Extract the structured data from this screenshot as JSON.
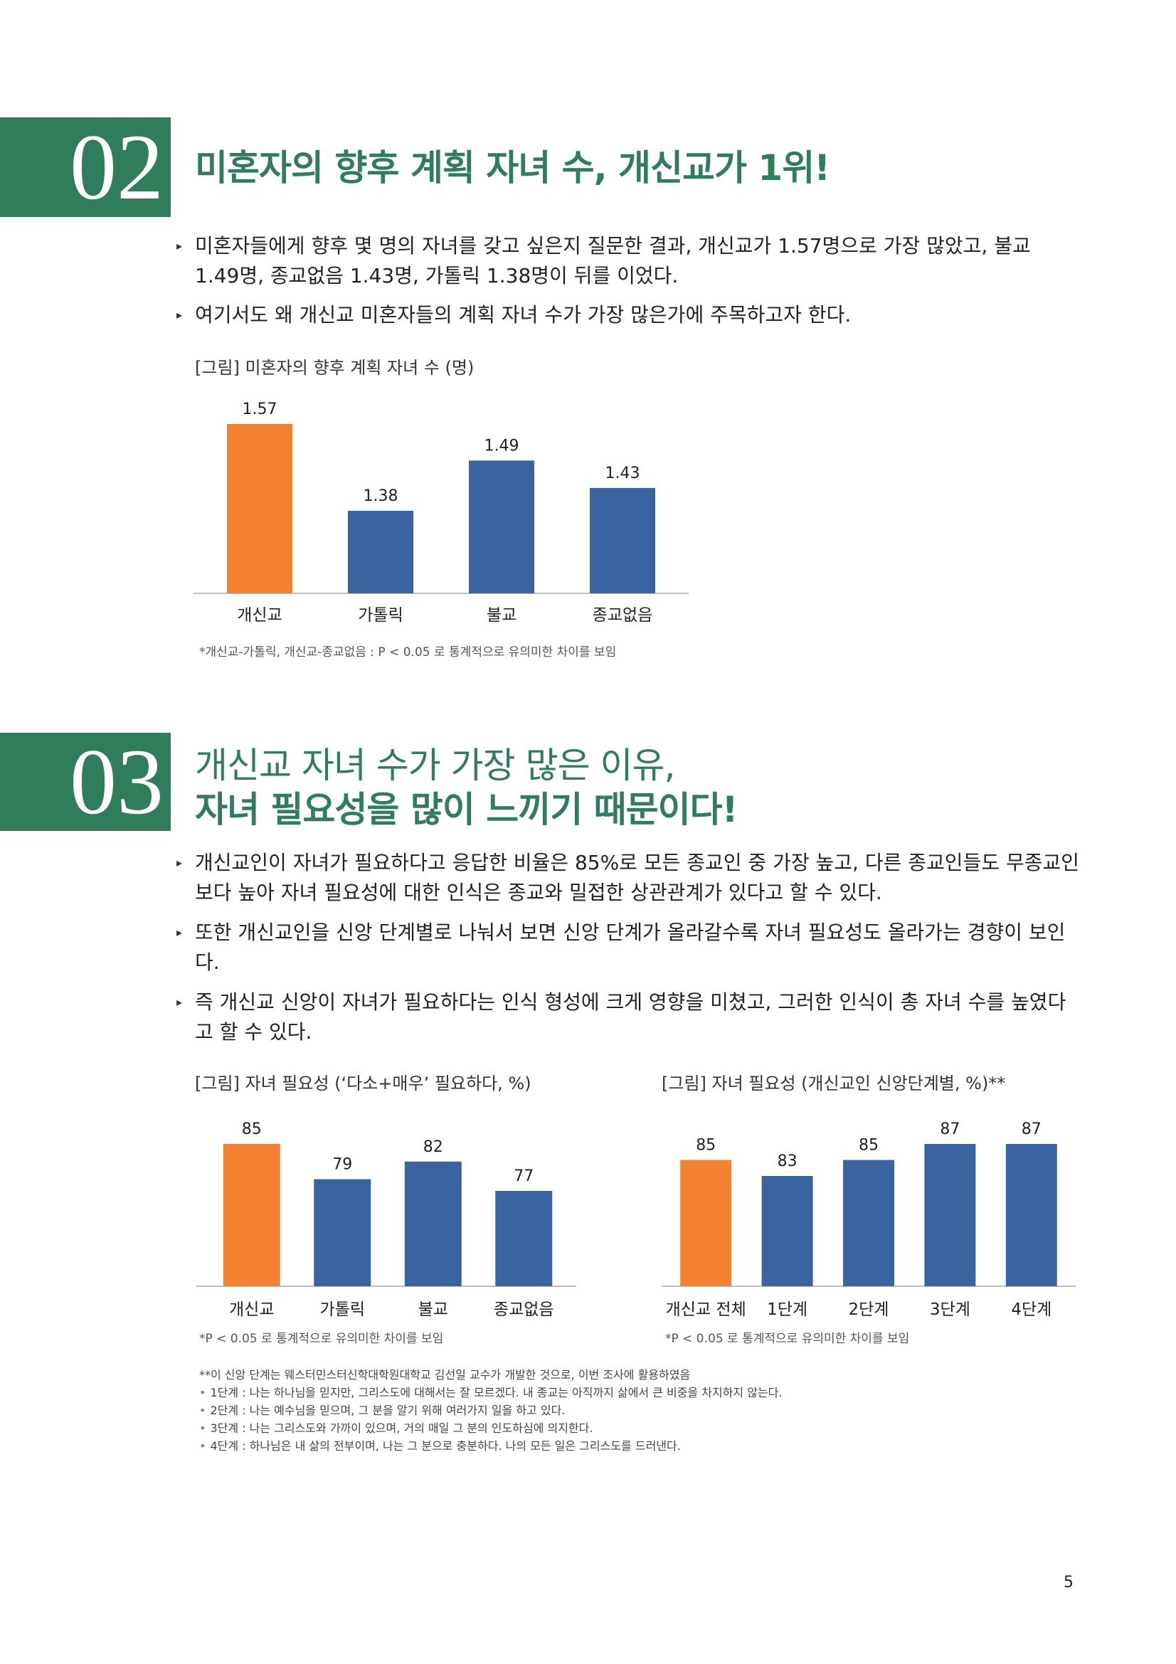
{
  "colors": {
    "green": "#2f7d5a",
    "orange": "#f58232",
    "blue": "#3a64a0"
  },
  "sec02": {
    "number": "02",
    "title": "미혼자의 향후 계획 자녀 수, 개신교가 1위!",
    "bullets": [
      "미혼자들에게 향후 몇 명의 자녀를 갖고 싶은지 질문한 결과, 개신교가 1.57명으로 가장 많았고, 불교 1.49명, 종교없음 1.43명, 가톨릭 1.38명이 뒤를 이었다.",
      "여기서도 왜 개신교 미혼자들의 계획 자녀 수가 가장 많은가에 주목하고자 한다."
    ],
    "figure_title": "[그림] 미혼자의 향후 계획 자녀 수 (명)",
    "note": "*개신교-가톨릭, 개신교-종교없음 : P < 0.05 로 통계적으로 유의미한 차이를 보임"
  },
  "sec03": {
    "number": "03",
    "title_line1": "개신교 자녀 수가 가장 많은 이유,",
    "title_line2": "자녀 필요성을 많이 느끼기 때문이다!",
    "bullets": [
      "개신교인이 자녀가 필요하다고 응답한 비율은 85%로 모든 종교인 중 가장 높고, 다른 종교인들도 무종교인보다 높아 자녀 필요성에 대한 인식은 종교와 밀접한 상관관계가 있다고 할 수 있다.",
      "또한 개신교인을 신앙 단계별로 나눠서 보면 신앙 단계가 올라갈수록 자녀 필요성도 올라가는 경향이 보인다.",
      "즉 개신교 신앙이 자녀가 필요하다는 인식 형성에 크게 영향을 미쳤고, 그러한 인식이 총 자녀 수를 높였다고 할 수 있다."
    ],
    "figure1_title": "[그림] 자녀 필요성 (‘다소+매우’ 필요하다, %)",
    "figure2_title": "[그림] 자녀 필요성 (개신교인 신앙단계별, %)**",
    "note1": "*P < 0.05 로 통계적으로 유의미한 차이를 보임",
    "note2": "*P < 0.05 로 통계적으로 유의미한 차이를 보임",
    "footnote_head": "**이 신앙 단계는 웨스터민스터신학대학원대학교 김선일 교수가 개발한 것으로, 이번 조사에 활용하였음",
    "footnote_items": [
      "1단계 : 나는 하나님을 믿지만, 그리스도에 대해서는 잘 모르겠다. 내 종교는 아직까지 삶에서 큰 비중을 차지하지 않는다.",
      "2단계 : 나는 예수님을 믿으며, 그 분을 알기 위해 여러가지 일을 하고 있다.",
      "3단계 : 나는 그리스도와 가까이 있으며, 거의 매일 그 분의 인도하심에 의지한다.",
      "4단계 : 하나님은 내 삶의 전부이며, 나는 그 분으로 충분하다. 나의 모든 일은 그리스도를 드러낸다."
    ]
  },
  "page_number": "5",
  "chart_data": [
    {
      "type": "bar",
      "title": "[그림] 미혼자의 향후 계획 자녀 수 (명)",
      "categories": [
        "개신교",
        "가톨릭",
        "불교",
        "종교없음"
      ],
      "values": [
        1.57,
        1.38,
        1.49,
        1.43
      ],
      "labels": [
        "1.57",
        "1.38",
        "1.49",
        "1.43"
      ],
      "highlight_index": 0,
      "ylim": [
        0,
        1.57
      ],
      "xlabel": "",
      "ylabel": ""
    },
    {
      "type": "bar",
      "title": "[그림] 자녀 필요성 (‘다소+매우’ 필요하다, %)",
      "categories": [
        "개신교",
        "가톨릭",
        "불교",
        "종교없음"
      ],
      "values": [
        85,
        79,
        82,
        77
      ],
      "labels": [
        "85",
        "79",
        "82",
        "77"
      ],
      "highlight_index": 0,
      "ylim": [
        0,
        85
      ],
      "xlabel": "",
      "ylabel": ""
    },
    {
      "type": "bar",
      "title": "[그림] 자녀 필요성 (개신교인 신앙단계별, %)**",
      "categories": [
        "개신교 전체",
        "1단계",
        "2단계",
        "3단계",
        "4단계"
      ],
      "values": [
        85,
        83,
        85,
        87,
        87
      ],
      "labels": [
        "85",
        "83",
        "85",
        "87",
        "87"
      ],
      "highlight_index": 0,
      "ylim": [
        0,
        87
      ],
      "xlabel": "",
      "ylabel": ""
    }
  ]
}
